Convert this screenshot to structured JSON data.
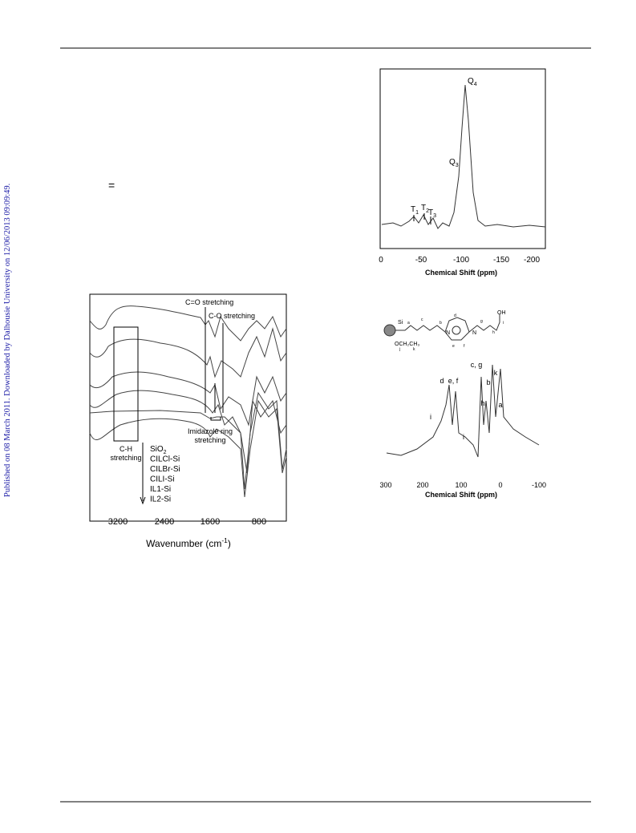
{
  "sidebar": "Published on 08 March 2011. Downloaded by Dalhousie University on 12/06/2013 09:09:49.",
  "equals_mark": "=",
  "figure_ftir": {
    "annotations": [
      "C=O stretching",
      "C-O stretching",
      "C-H",
      "stretching",
      "Imidazole ring",
      "stretching"
    ],
    "legend": [
      {
        "main": "SiO",
        "sub": "2"
      },
      {
        "main": "CILCl-Si"
      },
      {
        "main": "CILBr-Si"
      },
      {
        "main": "CILI-Si"
      },
      {
        "main": "IL1-Si"
      },
      {
        "main": "IL2-Si"
      }
    ],
    "x_ticks": [
      "3200",
      "2400",
      "1600",
      "800"
    ],
    "x_title": {
      "main": "Wavenumber (cm",
      "sup": "-1",
      "end": ")"
    }
  },
  "figure_si_nmr": {
    "peaks": [
      {
        "main": "Q",
        "sub": "4"
      },
      {
        "main": "Q",
        "sub": "3"
      },
      {
        "main": "T",
        "sub": "1"
      },
      {
        "main": "T",
        "sub": "2"
      },
      {
        "main": "T",
        "sub": "3"
      }
    ],
    "x_ticks": [
      "0",
      "-50",
      "-100",
      "-150",
      "-200"
    ],
    "x_title": "Chemical Shift (ppm)"
  },
  "figure_c_nmr": {
    "structure_labels": [
      "OH",
      "Si",
      "OCH₂CH₃",
      "N",
      "N",
      "a",
      "b",
      "c",
      "d",
      "e",
      "f",
      "g",
      "h",
      "i",
      "j",
      "k"
    ],
    "peaks": [
      "e, f",
      "d",
      "c, g",
      "b",
      "k",
      "h",
      "a",
      "i",
      "i"
    ],
    "x_ticks": [
      "300",
      "200",
      "100",
      "0",
      "-100"
    ],
    "x_title": "Chemical Shift (ppm)"
  }
}
